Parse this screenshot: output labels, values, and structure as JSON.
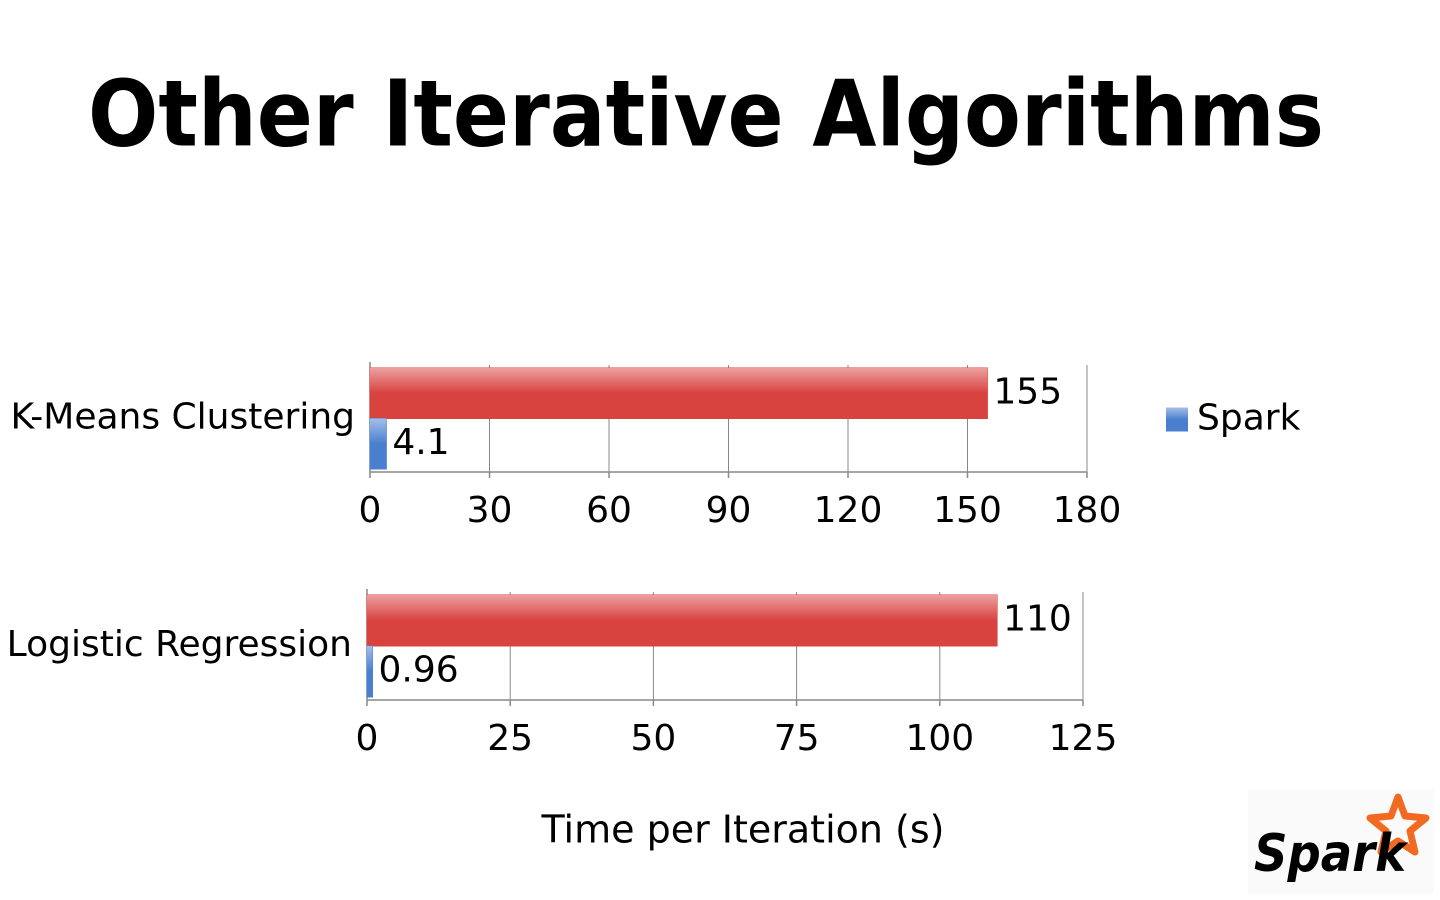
{
  "title": "Other Iterative Algorithms",
  "x_label": "Time per Iteration (s)",
  "logo": "Spark",
  "chart_data": [
    {
      "type": "bar",
      "orientation": "horizontal",
      "categories": [
        "K-Means Clustering"
      ],
      "series": [
        {
          "color": "#d8423f",
          "values": [
            155
          ]
        },
        {
          "name": "Spark",
          "color": "#4a7fd0",
          "values": [
            4.1
          ]
        }
      ],
      "xlim": [
        0,
        180
      ],
      "xticks": [
        0,
        30,
        60,
        90,
        120,
        150,
        180
      ],
      "grid": true,
      "legend": "right"
    },
    {
      "type": "bar",
      "orientation": "horizontal",
      "categories": [
        "Logistic Regression"
      ],
      "series": [
        {
          "color": "#d8423f",
          "values": [
            110
          ]
        },
        {
          "name": "Spark",
          "color": "#4a7fd0",
          "values": [
            0.96
          ]
        }
      ],
      "xlim": [
        0,
        125
      ],
      "xticks": [
        0,
        25,
        50,
        75,
        100,
        125
      ],
      "grid": true
    }
  ]
}
